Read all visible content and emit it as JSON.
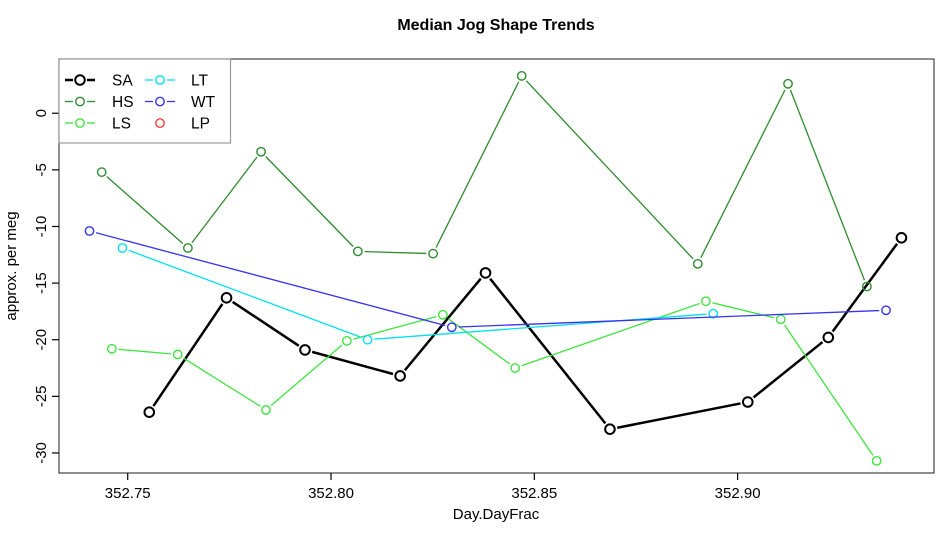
{
  "chart_data": {
    "type": "line",
    "title": "Median Jog Shape Trends",
    "xlabel": "Day.DayFrac",
    "ylabel": "approx. per meg",
    "xlim": [
      352.7331,
      352.9483
    ],
    "ylim": [
      -31.77,
      4.79
    ],
    "grid": false,
    "x_ticks": [
      352.75,
      352.8,
      352.85,
      352.9
    ],
    "x_tick_labels": [
      "352.75",
      "352.80",
      "352.85",
      "352.90"
    ],
    "y_ticks": [
      0,
      -5,
      -10,
      -15,
      -20,
      -25,
      -30
    ],
    "y_tick_labels": [
      "0",
      "-5",
      "-10",
      "-15",
      "-20",
      "-25",
      "-30"
    ],
    "marker": "open-circle",
    "series": [
      {
        "name": "SA",
        "color": "#000000",
        "line_width": 2.5,
        "marker_radius": 4.8,
        "marker_stroke": 2.0,
        "points": [
          [
            352.7553,
            -26.4
          ],
          [
            352.7743,
            -16.3
          ],
          [
            352.7936,
            -20.9
          ],
          [
            352.817,
            -23.2
          ],
          [
            352.838,
            -14.1
          ],
          [
            352.8686,
            -27.9
          ],
          [
            352.9025,
            -25.5
          ],
          [
            352.9223,
            -19.8
          ],
          [
            352.9403,
            -11.0
          ]
        ]
      },
      {
        "name": "HS",
        "color": "#2e8b2e",
        "line_width": 1.3,
        "marker_radius": 4.2,
        "marker_stroke": 1.4,
        "points": [
          [
            352.7436,
            -5.2
          ],
          [
            352.7648,
            -11.9
          ],
          [
            352.7828,
            -3.4
          ],
          [
            352.8066,
            -12.2
          ],
          [
            352.8251,
            -12.4
          ],
          [
            352.8469,
            3.3
          ],
          [
            352.8902,
            -13.3
          ],
          [
            352.9124,
            2.6
          ],
          [
            352.9318,
            -15.3
          ]
        ]
      },
      {
        "name": "LS",
        "color": "#3fe43f",
        "line_width": 1.3,
        "marker_radius": 4.2,
        "marker_stroke": 1.4,
        "points": [
          [
            352.7461,
            -20.8
          ],
          [
            352.7623,
            -21.3
          ],
          [
            352.784,
            -26.2
          ],
          [
            352.8039,
            -20.1
          ],
          [
            352.8275,
            -17.8
          ],
          [
            352.8453,
            -22.5
          ],
          [
            352.8922,
            -16.6
          ],
          [
            352.9106,
            -18.2
          ],
          [
            352.9342,
            -30.7
          ]
        ]
      },
      {
        "name": "LT",
        "color": "#00e0ee",
        "line_width": 1.3,
        "marker_radius": 4.2,
        "marker_stroke": 1.4,
        "points": [
          [
            352.7487,
            -11.9
          ],
          [
            352.809,
            -20.0
          ],
          [
            352.894,
            -17.7
          ]
        ]
      },
      {
        "name": "WT",
        "color": "#3434f0",
        "line_width": 1.3,
        "marker_radius": 4.2,
        "marker_stroke": 1.4,
        "points": [
          [
            352.7406,
            -10.4
          ],
          [
            352.8297,
            -18.9
          ],
          [
            352.9365,
            -17.4
          ]
        ]
      },
      {
        "name": "LP",
        "color": "#f43b3b",
        "line_width": 1.3,
        "marker_radius": 4.2,
        "marker_stroke": 1.4,
        "points": []
      }
    ],
    "legend": {
      "position": "top-left",
      "columns": 2,
      "entries": [
        {
          "label": "SA",
          "series": "SA",
          "line": true
        },
        {
          "label": "HS",
          "series": "HS",
          "line": true
        },
        {
          "label": "LS",
          "series": "LS",
          "line": true
        },
        {
          "label": "LT",
          "series": "LT",
          "line": true
        },
        {
          "label": "WT",
          "series": "WT",
          "line": true
        },
        {
          "label": "LP",
          "series": "LP",
          "line": false
        }
      ]
    },
    "axis_color": "#444444",
    "legend_border_color": "#999999"
  }
}
